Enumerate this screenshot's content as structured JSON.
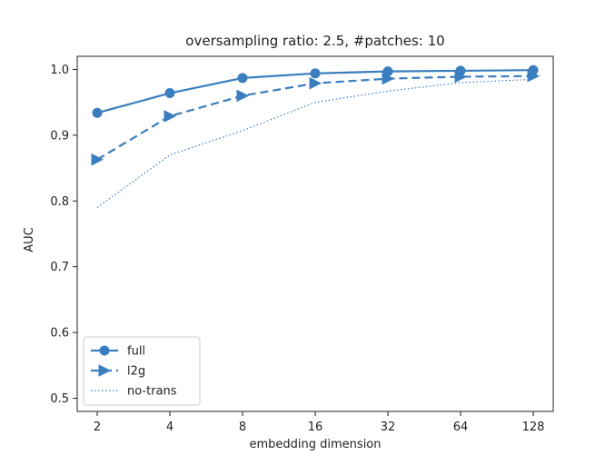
{
  "chart_data": {
    "type": "line",
    "title": "oversampling ratio: 2.5, #patches: 10",
    "xlabel": "embedding dimension",
    "ylabel": "AUC",
    "x_scale": "log2",
    "categories": [
      "2",
      "4",
      "8",
      "16",
      "32",
      "64",
      "128"
    ],
    "x": [
      2,
      4,
      8,
      16,
      32,
      64,
      128
    ],
    "ylim": [
      0.48,
      1.02
    ],
    "yticks": [
      "0.5",
      "0.6",
      "0.7",
      "0.8",
      "0.9",
      "1.0"
    ],
    "yticks_values": [
      0.5,
      0.6,
      0.7,
      0.8,
      0.9,
      1.0
    ],
    "grid": false,
    "legend_position": "lower-left",
    "color": "#3a7ebf",
    "series": [
      {
        "name": "full",
        "line": "solid",
        "marker": "circle",
        "values": [
          0.934,
          0.964,
          0.987,
          0.994,
          0.997,
          0.998,
          0.999
        ]
      },
      {
        "name": "l2g",
        "line": "dashed",
        "marker": "triangle-right",
        "values": [
          0.863,
          0.929,
          0.96,
          0.979,
          0.986,
          0.989,
          0.99
        ]
      },
      {
        "name": "no-trans",
        "line": "dotted",
        "marker": "none",
        "values": [
          0.79,
          0.87,
          0.907,
          0.95,
          0.967,
          0.98,
          0.985
        ]
      }
    ]
  }
}
